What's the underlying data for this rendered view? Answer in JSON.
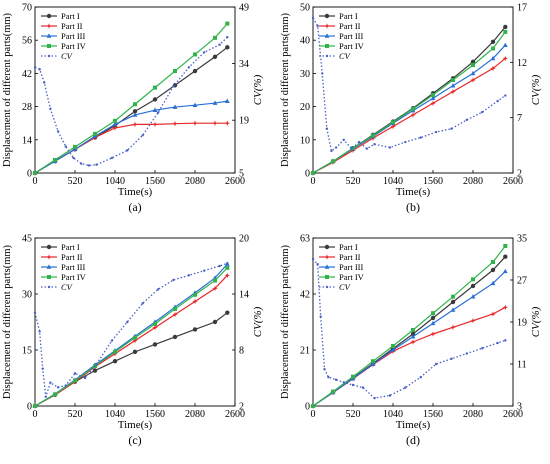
{
  "figure": {
    "panel_labels": [
      "(a)",
      "(b)",
      "(c)",
      "(d)"
    ]
  },
  "series_styles": {
    "Part I": {
      "color": "#3a3a3a",
      "marker": "circle"
    },
    "Part II": {
      "color": "#e8262a",
      "marker": "star"
    },
    "Part III": {
      "color": "#2a6fd6",
      "marker": "triangle"
    },
    "Part IV": {
      "color": "#2fb34a",
      "marker": "square"
    },
    "CV": {
      "color": "#4a60c8",
      "marker": "dot"
    }
  },
  "chart_data": [
    {
      "type": "line",
      "panel": "(a)",
      "xlabel": "Time(s)",
      "ylabel": "Displacement of different parts(mm)",
      "y2label": "CV(%)",
      "xlim": [
        0,
        2600
      ],
      "ylim": [
        0,
        70
      ],
      "y2lim": [
        5,
        49
      ],
      "xticks": [
        0,
        520,
        1040,
        1560,
        2080,
        2600
      ],
      "yticks": [
        0,
        14,
        28,
        42,
        56,
        70
      ],
      "y2ticks": [
        5,
        19,
        34,
        49
      ],
      "legend": [
        "Part I",
        "Part II",
        "Part III",
        "Part IV",
        "CV"
      ],
      "legend_position": "top-left",
      "series": [
        {
          "name": "Part I",
          "axis": "left",
          "x": [
            0,
            260,
            520,
            780,
            1040,
            1300,
            1560,
            1820,
            2080,
            2340,
            2500
          ],
          "y": [
            0,
            5,
            10,
            15,
            20,
            26,
            31,
            37,
            43,
            49,
            53
          ]
        },
        {
          "name": "Part II",
          "axis": "left",
          "x": [
            0,
            260,
            520,
            780,
            1040,
            1300,
            1560,
            1820,
            2080,
            2340,
            2500
          ],
          "y": [
            0,
            5,
            10,
            15,
            19,
            20.5,
            20.5,
            20.8,
            21,
            21,
            21
          ]
        },
        {
          "name": "Part III",
          "axis": "left",
          "x": [
            0,
            260,
            520,
            780,
            1040,
            1300,
            1560,
            1820,
            2080,
            2340,
            2500
          ],
          "y": [
            0,
            5,
            10,
            15.5,
            20.5,
            24.5,
            26.5,
            27.8,
            28.6,
            29.5,
            30.3
          ]
        },
        {
          "name": "Part IV",
          "axis": "left",
          "x": [
            0,
            260,
            520,
            780,
            1040,
            1300,
            1560,
            1820,
            2080,
            2340,
            2500
          ],
          "y": [
            0,
            5.5,
            11,
            16.5,
            22,
            29,
            36,
            43,
            50,
            57,
            63
          ]
        },
        {
          "name": "CV",
          "axis": "right",
          "x": [
            0,
            60,
            120,
            200,
            300,
            400,
            500,
            600,
            700,
            800,
            1000,
            1200,
            1400,
            1600,
            1800,
            2000,
            2200,
            2400,
            2500
          ],
          "y": [
            33,
            32.5,
            29,
            22,
            16,
            12,
            9,
            7.5,
            7,
            7.2,
            9,
            11,
            15,
            21,
            28,
            33,
            37,
            39,
            41
          ]
        }
      ]
    },
    {
      "type": "line",
      "panel": "(b)",
      "xlabel": "Time(s)",
      "ylabel": "Displacement of different parts(mm)",
      "y2label": "CV(%)",
      "xlim": [
        0,
        2600
      ],
      "ylim": [
        0,
        50
      ],
      "y2lim": [
        2,
        17
      ],
      "xticks": [
        0,
        520,
        1040,
        1560,
        2080,
        2600
      ],
      "yticks": [
        0,
        10,
        20,
        30,
        40,
        50
      ],
      "y2ticks": [
        2,
        7,
        12,
        17
      ],
      "legend": [
        "Part I",
        "Part II",
        "Part III",
        "Part IV",
        "CV"
      ],
      "legend_position": "top-left",
      "series": [
        {
          "name": "Part I",
          "axis": "left",
          "x": [
            0,
            260,
            520,
            780,
            1040,
            1300,
            1560,
            1820,
            2080,
            2340,
            2500
          ],
          "y": [
            0,
            3.5,
            7.5,
            11.5,
            15.5,
            19.5,
            24,
            28.5,
            33.5,
            39.5,
            44
          ]
        },
        {
          "name": "Part II",
          "axis": "left",
          "x": [
            0,
            260,
            520,
            780,
            1040,
            1300,
            1560,
            1820,
            2080,
            2340,
            2500
          ],
          "y": [
            0,
            3.2,
            6.8,
            10.5,
            14,
            17.5,
            21,
            24.5,
            28,
            31.5,
            34.5
          ]
        },
        {
          "name": "Part III",
          "axis": "left",
          "x": [
            0,
            260,
            520,
            780,
            1040,
            1300,
            1560,
            1820,
            2080,
            2340,
            2500
          ],
          "y": [
            0,
            3.5,
            7.3,
            11,
            15,
            18.8,
            22.5,
            26.3,
            30,
            34.5,
            38.5
          ]
        },
        {
          "name": "Part IV",
          "axis": "left",
          "x": [
            0,
            260,
            520,
            780,
            1040,
            1300,
            1560,
            1820,
            2080,
            2340,
            2500
          ],
          "y": [
            0,
            3.5,
            7.5,
            11.3,
            15.3,
            19.3,
            23.5,
            28,
            32.5,
            37.5,
            42.5
          ]
        },
        {
          "name": "CV",
          "axis": "right",
          "x": [
            0,
            60,
            120,
            180,
            240,
            300,
            400,
            500,
            600,
            700,
            800,
            1000,
            1200,
            1400,
            1600,
            1800,
            2000,
            2200,
            2400,
            2500
          ],
          "y": [
            16,
            15.3,
            11,
            6,
            4,
            4.3,
            5,
            4.2,
            4.8,
            4.2,
            4.6,
            4.3,
            4.8,
            5.2,
            5.7,
            6,
            6.8,
            7.5,
            8.5,
            9
          ]
        }
      ]
    },
    {
      "type": "line",
      "panel": "(c)",
      "xlabel": "Time(s)",
      "ylabel": "Displacement of different parts(mm)",
      "y2label": "CV(%)",
      "xlim": [
        0,
        2600
      ],
      "ylim": [
        0,
        45
      ],
      "y2lim": [
        2,
        20
      ],
      "xticks": [
        0,
        520,
        1040,
        1560,
        2080,
        2600
      ],
      "yticks": [
        0,
        15,
        30,
        45
      ],
      "y2ticks": [
        2,
        8,
        14,
        20
      ],
      "legend": [
        "Part I",
        "Part II",
        "Part III",
        "Part IV",
        "CV"
      ],
      "legend_position": "top-left",
      "series": [
        {
          "name": "Part I",
          "axis": "left",
          "x": [
            0,
            260,
            520,
            780,
            1040,
            1300,
            1560,
            1820,
            2080,
            2340,
            2500
          ],
          "y": [
            0,
            3,
            6.5,
            9.5,
            12,
            14.5,
            16.5,
            18.5,
            20.5,
            22.5,
            25
          ]
        },
        {
          "name": "Part II",
          "axis": "left",
          "x": [
            0,
            260,
            520,
            780,
            1040,
            1300,
            1560,
            1820,
            2080,
            2340,
            2500
          ],
          "y": [
            0,
            3,
            6.5,
            10.5,
            14,
            17.5,
            21,
            24.5,
            28,
            31.5,
            35
          ]
        },
        {
          "name": "Part III",
          "axis": "left",
          "x": [
            0,
            260,
            520,
            780,
            1040,
            1300,
            1560,
            1820,
            2080,
            2340,
            2500
          ],
          "y": [
            0,
            3.2,
            7,
            11,
            14.8,
            18.7,
            22.5,
            26.5,
            30.3,
            34.3,
            38
          ]
        },
        {
          "name": "Part IV",
          "axis": "left",
          "x": [
            0,
            260,
            520,
            780,
            1040,
            1300,
            1560,
            1820,
            2080,
            2340,
            2500
          ],
          "y": [
            0,
            3.1,
            6.8,
            10.7,
            14.5,
            18.3,
            22,
            26,
            29.8,
            33.6,
            37
          ]
        },
        {
          "name": "CV",
          "axis": "right",
          "x": [
            0,
            60,
            100,
            140,
            200,
            300,
            400,
            520,
            650,
            800,
            1000,
            1200,
            1400,
            1600,
            1800,
            2000,
            2200,
            2400,
            2500
          ],
          "y": [
            12,
            10,
            6,
            3,
            4.5,
            4,
            4.2,
            5.5,
            5,
            6.5,
            9,
            11,
            13,
            14.5,
            15.5,
            16,
            16.5,
            17,
            17.3
          ]
        }
      ]
    },
    {
      "type": "line",
      "panel": "(d)",
      "xlabel": "Time(s)",
      "ylabel": "Displacement of different parts(mm)",
      "y2label": "CV(%)",
      "xlim": [
        0,
        2600
      ],
      "ylim": [
        0,
        63
      ],
      "y2lim": [
        3,
        35
      ],
      "xticks": [
        0,
        520,
        1040,
        1560,
        2080,
        2600
      ],
      "yticks": [
        0,
        21,
        42,
        63
      ],
      "y2ticks": [
        3,
        11,
        19,
        27,
        35
      ],
      "legend": [
        "Part I",
        "Part II",
        "Part III",
        "Part IV",
        "CV"
      ],
      "legend_position": "top-left",
      "series": [
        {
          "name": "Part I",
          "axis": "left",
          "x": [
            0,
            260,
            520,
            780,
            1040,
            1300,
            1560,
            1820,
            2080,
            2340,
            2500
          ],
          "y": [
            0,
            5.2,
            10.5,
            16,
            21.5,
            27,
            33,
            39,
            45,
            51,
            56
          ]
        },
        {
          "name": "Part II",
          "axis": "left",
          "x": [
            0,
            260,
            520,
            780,
            1040,
            1300,
            1560,
            1820,
            2080,
            2340,
            2500
          ],
          "y": [
            0,
            5,
            10.2,
            15.5,
            20.5,
            24,
            27,
            29.5,
            32,
            34.5,
            37
          ]
        },
        {
          "name": "Part III",
          "axis": "left",
          "x": [
            0,
            260,
            520,
            780,
            1040,
            1300,
            1560,
            1820,
            2080,
            2340,
            2500
          ],
          "y": [
            0,
            5.1,
            10.3,
            15.7,
            21,
            26,
            31,
            36,
            41,
            46,
            50.5
          ]
        },
        {
          "name": "Part IV",
          "axis": "left",
          "x": [
            0,
            260,
            520,
            780,
            1040,
            1300,
            1560,
            1820,
            2080,
            2340,
            2500
          ],
          "y": [
            0,
            5.4,
            11,
            16.8,
            22.5,
            28.5,
            34.8,
            41,
            47.5,
            54,
            60
          ]
        },
        {
          "name": "CV",
          "axis": "right",
          "x": [
            0,
            60,
            100,
            150,
            200,
            300,
            400,
            520,
            650,
            800,
            1000,
            1200,
            1400,
            1600,
            1800,
            2000,
            2200,
            2400,
            2500
          ],
          "y": [
            31,
            30,
            20,
            10,
            8.5,
            8,
            7.5,
            7,
            6.5,
            4.5,
            5,
            6.5,
            8.5,
            11,
            12,
            13,
            14,
            15,
            15.5
          ]
        }
      ]
    }
  ]
}
